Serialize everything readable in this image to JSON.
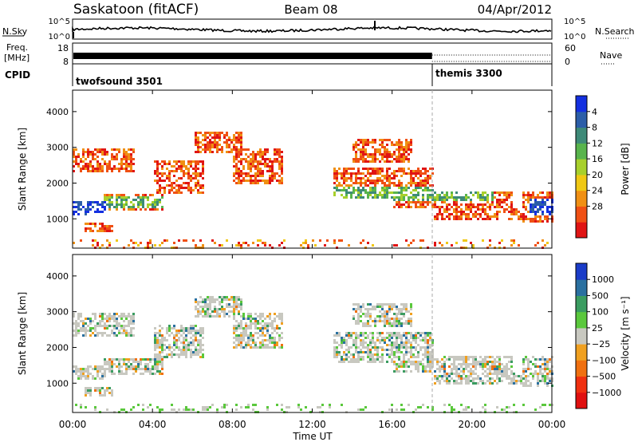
{
  "header": {
    "station": "Saskatoon (fitACF)",
    "beam": "Beam 08",
    "date": "04/Apr/2012"
  },
  "sky_panel": {
    "left_label": "N.Sky",
    "right_label": "N.Search",
    "tick_high": "10^5",
    "tick_low": "10^0"
  },
  "freq_panel": {
    "left_label_1": "Freq.",
    "left_label_2": "[MHz]",
    "left_ticks": [
      "18",
      "8"
    ],
    "right_ticks": [
      "60",
      "0"
    ],
    "right_label": "Nave"
  },
  "cpid_panel": {
    "label": "CPID",
    "modes": [
      {
        "name": "twofsound 3501",
        "start_hour": 0
      },
      {
        "name": "themis 3300",
        "start_hour": 18
      }
    ]
  },
  "chart_data": [
    {
      "type": "heatmap",
      "title": "Power",
      "ylabel": "Slant Range [km]",
      "ylim": [
        180,
        4600
      ],
      "yticks": [
        1000,
        2000,
        3000,
        4000
      ],
      "colorbar_label": "Power [dB]",
      "colorbar_ticks": [
        "4",
        "8",
        "12",
        "16",
        "20",
        "24",
        "28"
      ],
      "colorbar_colors": [
        "#1430e0",
        "#2c5ea8",
        "#3e8a78",
        "#58b44c",
        "#a8d02c",
        "#f0c814",
        "#f09014",
        "#f05014",
        "#e01414"
      ]
    },
    {
      "type": "heatmap",
      "title": "Velocity",
      "ylabel": "Slant Range [km]",
      "ylim": [
        180,
        4600
      ],
      "yticks": [
        1000,
        2000,
        3000,
        4000
      ],
      "colorbar_label": "Velocity [m s⁻¹]",
      "colorbar_ticks": [
        "1000",
        "500",
        "100",
        "25",
        "−25",
        "−100",
        "−500",
        "−1000"
      ],
      "colorbar_colors": [
        "#1a3cc8",
        "#2a70a0",
        "#3a9c60",
        "#5ac83c",
        "#c8c8c0",
        "#f0a020",
        "#f07010",
        "#f03010",
        "#e01010"
      ]
    }
  ],
  "xaxis": {
    "label": "Time UT",
    "ticks": [
      "00:00",
      "04:00",
      "08:00",
      "12:00",
      "16:00",
      "20:00",
      "00:00"
    ],
    "range_hours": [
      0,
      24
    ]
  }
}
